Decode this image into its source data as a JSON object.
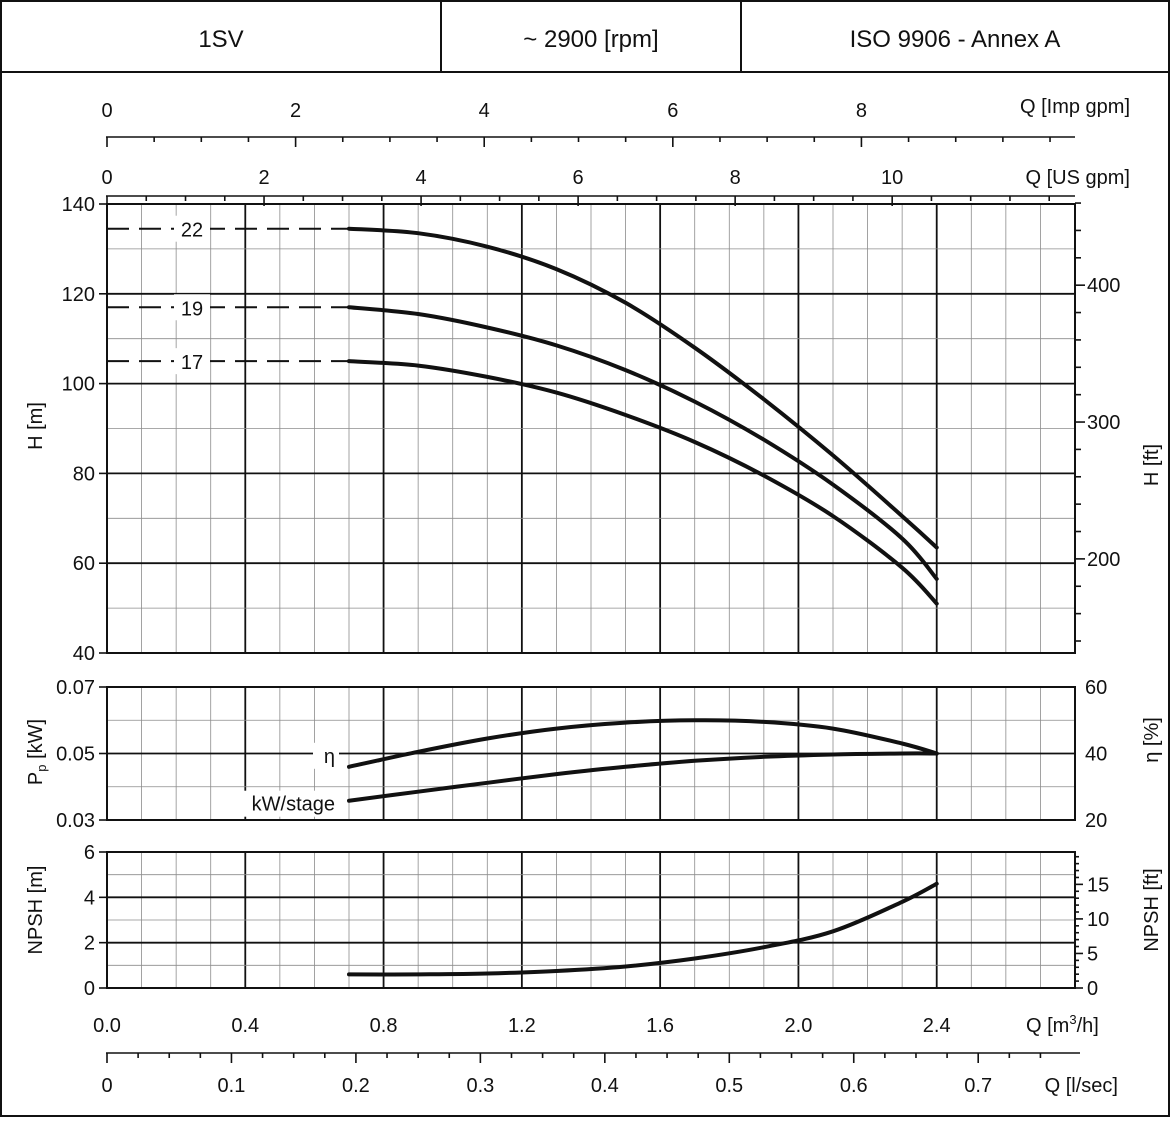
{
  "header": {
    "model": "1SV",
    "speed": "~ 2900 [rpm]",
    "standard": "ISO 9906 - Annex A"
  },
  "chart_data": {
    "type": "line",
    "x_axes": {
      "q_m3h": {
        "label": "Q [m",
        "sup": "3",
        "label_end": "/h]",
        "range": [
          0,
          2.8
        ],
        "ticks": [
          "0.0",
          "0.4",
          "0.8",
          "1.2",
          "1.6",
          "2.0",
          "2.4"
        ]
      },
      "q_imp_gpm": {
        "label": "Q [Imp gpm]",
        "ticks": [
          "0",
          "2",
          "4",
          "6",
          "8"
        ]
      },
      "q_us_gpm": {
        "label": "Q [US gpm]",
        "ticks": [
          "0",
          "2",
          "4",
          "6",
          "8",
          "10"
        ]
      },
      "q_lsec": {
        "label": "Q [l/sec]",
        "ticks": [
          "0",
          "0.1",
          "0.2",
          "0.3",
          "0.4",
          "0.5",
          "0.6",
          "0.7"
        ]
      }
    },
    "head": {
      "ylabel": "H [m]",
      "ylabel_right": "H [ft]",
      "ylim": [
        40,
        140
      ],
      "ticks": [
        "40",
        "60",
        "80",
        "100",
        "120",
        "140"
      ],
      "ticks_right": [
        "200",
        "300",
        "400"
      ],
      "series": [
        {
          "name": "22",
          "dashed_to": 0.7,
          "x": [
            0.7,
            0.9,
            1.1,
            1.3,
            1.5,
            1.7,
            1.9,
            2.1,
            2.3,
            2.4
          ],
          "y": [
            134.5,
            133.5,
            130.5,
            125.5,
            118,
            108,
            96.5,
            84,
            70.5,
            63.5
          ]
        },
        {
          "name": "19",
          "dashed_to": 0.7,
          "x": [
            0.7,
            0.9,
            1.1,
            1.3,
            1.5,
            1.7,
            1.9,
            2.1,
            2.3,
            2.4
          ],
          "y": [
            117,
            115.5,
            112.5,
            108.5,
            103,
            96,
            87.5,
            77.5,
            65.5,
            56.5
          ]
        },
        {
          "name": "17",
          "dashed_to": 0.7,
          "x": [
            0.7,
            0.9,
            1.1,
            1.3,
            1.5,
            1.7,
            1.9,
            2.1,
            2.3,
            2.4
          ],
          "y": [
            105,
            104,
            101.5,
            98,
            93,
            87,
            79.5,
            70.5,
            59,
            51
          ]
        }
      ]
    },
    "power": {
      "ylabel": "P",
      "ylabel_sub": "p",
      "ylabel_end": " [kW]",
      "ylim": [
        0.03,
        0.07
      ],
      "ticks": [
        "0.03",
        "0.05",
        "0.07"
      ],
      "ylabel_right": "η [%]",
      "ylim_right": [
        20,
        60
      ],
      "ticks_right": [
        "20",
        "40",
        "60"
      ],
      "series": [
        {
          "name": "η",
          "axis": "right",
          "x": [
            0.7,
            0.9,
            1.1,
            1.3,
            1.5,
            1.7,
            1.9,
            2.1,
            2.3,
            2.4
          ],
          "y": [
            36,
            40.5,
            44.5,
            47.5,
            49.3,
            50,
            49.5,
            47.5,
            43,
            40
          ]
        },
        {
          "name": "kW/stage",
          "axis": "left",
          "x": [
            0.7,
            0.9,
            1.1,
            1.3,
            1.5,
            1.7,
            1.9,
            2.1,
            2.3,
            2.4
          ],
          "y": [
            0.0358,
            0.0385,
            0.0412,
            0.0438,
            0.046,
            0.0478,
            0.049,
            0.0497,
            0.05,
            0.05
          ]
        }
      ]
    },
    "npsh": {
      "ylabel": "NPSH [m]",
      "ylabel_right": "NPSH [ft]",
      "ylim": [
        0,
        6
      ],
      "ticks": [
        "0",
        "2",
        "4",
        "6"
      ],
      "ticks_right": [
        "0",
        "5",
        "10",
        "15"
      ],
      "series": [
        {
          "name": "NPSH",
          "x": [
            0.7,
            0.9,
            1.1,
            1.3,
            1.5,
            1.7,
            1.9,
            2.1,
            2.3,
            2.4
          ],
          "y": [
            0.6,
            0.6,
            0.64,
            0.75,
            0.95,
            1.3,
            1.8,
            2.5,
            3.8,
            4.6
          ]
        }
      ]
    }
  }
}
